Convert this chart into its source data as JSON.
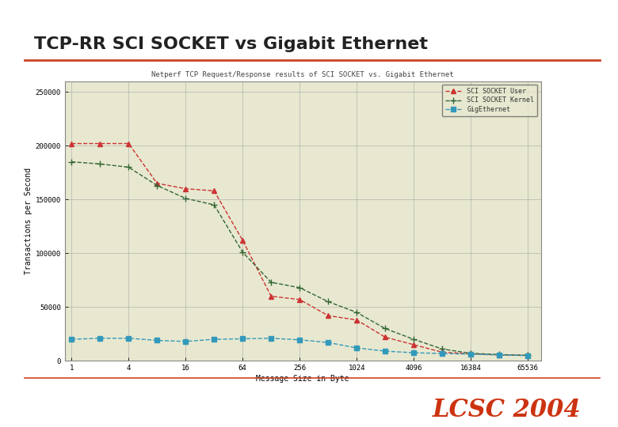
{
  "title": "TCP-RR SCI SOCKET vs Gigabit Ethernet",
  "subtitle": "Netperf TCP Request/Response results of SCI SOCKET vs. Gigabit Ethernet",
  "xlabel": "Message Size in Byte",
  "ylabel": "Transactions per Second",
  "lcsc_text": "LCSC 2004",
  "slide_bg": "#ffffff",
  "chart_bg": "#e8e8d0",
  "chart_border": "#888888",
  "title_color": "#222222",
  "title_line_color": "#cc4422",
  "lcsc_color": "#cc3311",
  "grid_color": "#aaaaaa",
  "series": [
    {
      "name": "SCI SOCKET User",
      "color": "#cc3333",
      "linestyle": "--",
      "marker": "^",
      "markersize": 4,
      "x": [
        1,
        2,
        4,
        8,
        16,
        32,
        64,
        128,
        256,
        512,
        1024,
        2048,
        4096,
        8192,
        16384,
        32768,
        65536
      ],
      "y": [
        202000,
        202000,
        202000,
        165000,
        160000,
        158000,
        112000,
        60000,
        57000,
        42000,
        38000,
        22000,
        15000,
        8000,
        6500,
        5500,
        5000
      ]
    },
    {
      "name": "SCI SOCKET Kernel",
      "color": "#336633",
      "linestyle": "--",
      "marker": "+",
      "markersize": 6,
      "x": [
        1,
        2,
        4,
        8,
        16,
        32,
        64,
        128,
        256,
        512,
        1024,
        2048,
        4096,
        8192,
        16384,
        32768,
        65536
      ],
      "y": [
        185000,
        183000,
        180000,
        163000,
        151000,
        145000,
        101000,
        73000,
        68000,
        55000,
        45000,
        30000,
        20000,
        11000,
        7000,
        5800,
        5100
      ]
    },
    {
      "name": "GigEthernet",
      "color": "#3399bb",
      "linestyle": "--",
      "marker": "s",
      "markersize": 4,
      "x": [
        1,
        2,
        4,
        8,
        16,
        32,
        64,
        128,
        256,
        512,
        1024,
        2048,
        4096,
        8192,
        16384,
        32768,
        65536
      ],
      "y": [
        20000,
        21000,
        21000,
        19000,
        18000,
        20000,
        20500,
        21000,
        19500,
        17000,
        12000,
        9000,
        7500,
        6800,
        6200,
        5500,
        4800
      ]
    }
  ],
  "ylim": [
    0,
    260000
  ],
  "yticks": [
    0,
    50000,
    100000,
    150000,
    200000,
    250000
  ],
  "ytick_labels": [
    "0",
    "50000",
    "100000",
    "150000",
    "200000",
    "250000"
  ],
  "x_tick_positions": [
    1,
    4,
    16,
    64,
    256,
    1024,
    4096,
    16384,
    65536
  ],
  "x_tick_labels": [
    "1",
    "4",
    "16",
    "64",
    "256",
    "1024",
    "4096",
    "16384",
    "65536"
  ]
}
